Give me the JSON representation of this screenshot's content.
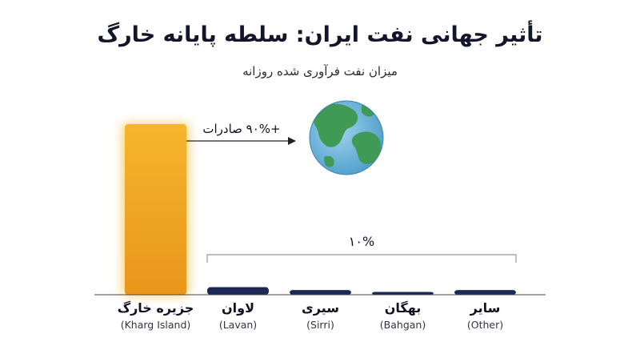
{
  "title": "تأثیر جهانی نفت ایران: سلطه پایانه خارگ",
  "subtitle": "میزان نفت فرآوری شده روزانه",
  "chart_data": {
    "type": "bar",
    "categories": [
      {
        "label": "جزیره خارگ",
        "sublabel": "(Kharg Island)"
      },
      {
        "label": "لاوان",
        "sublabel": "(Lavan)"
      },
      {
        "label": "سیری",
        "sublabel": "(Sirri)"
      },
      {
        "label": "بهگان",
        "sublabel": "(Bahgan)"
      },
      {
        "label": "سایر",
        "sublabel": "(Other)"
      }
    ],
    "values": [
      90,
      4,
      2.5,
      1.5,
      2.5
    ],
    "colors": [
      "#F2A623",
      "#1B2A55",
      "#1B2A55",
      "#1B2A55",
      "#1B2A55"
    ],
    "annotations": {
      "exports_label": "+۹۰% صادرات",
      "exports_icon": "globe-icon",
      "others_share": "۱۰%"
    }
  }
}
